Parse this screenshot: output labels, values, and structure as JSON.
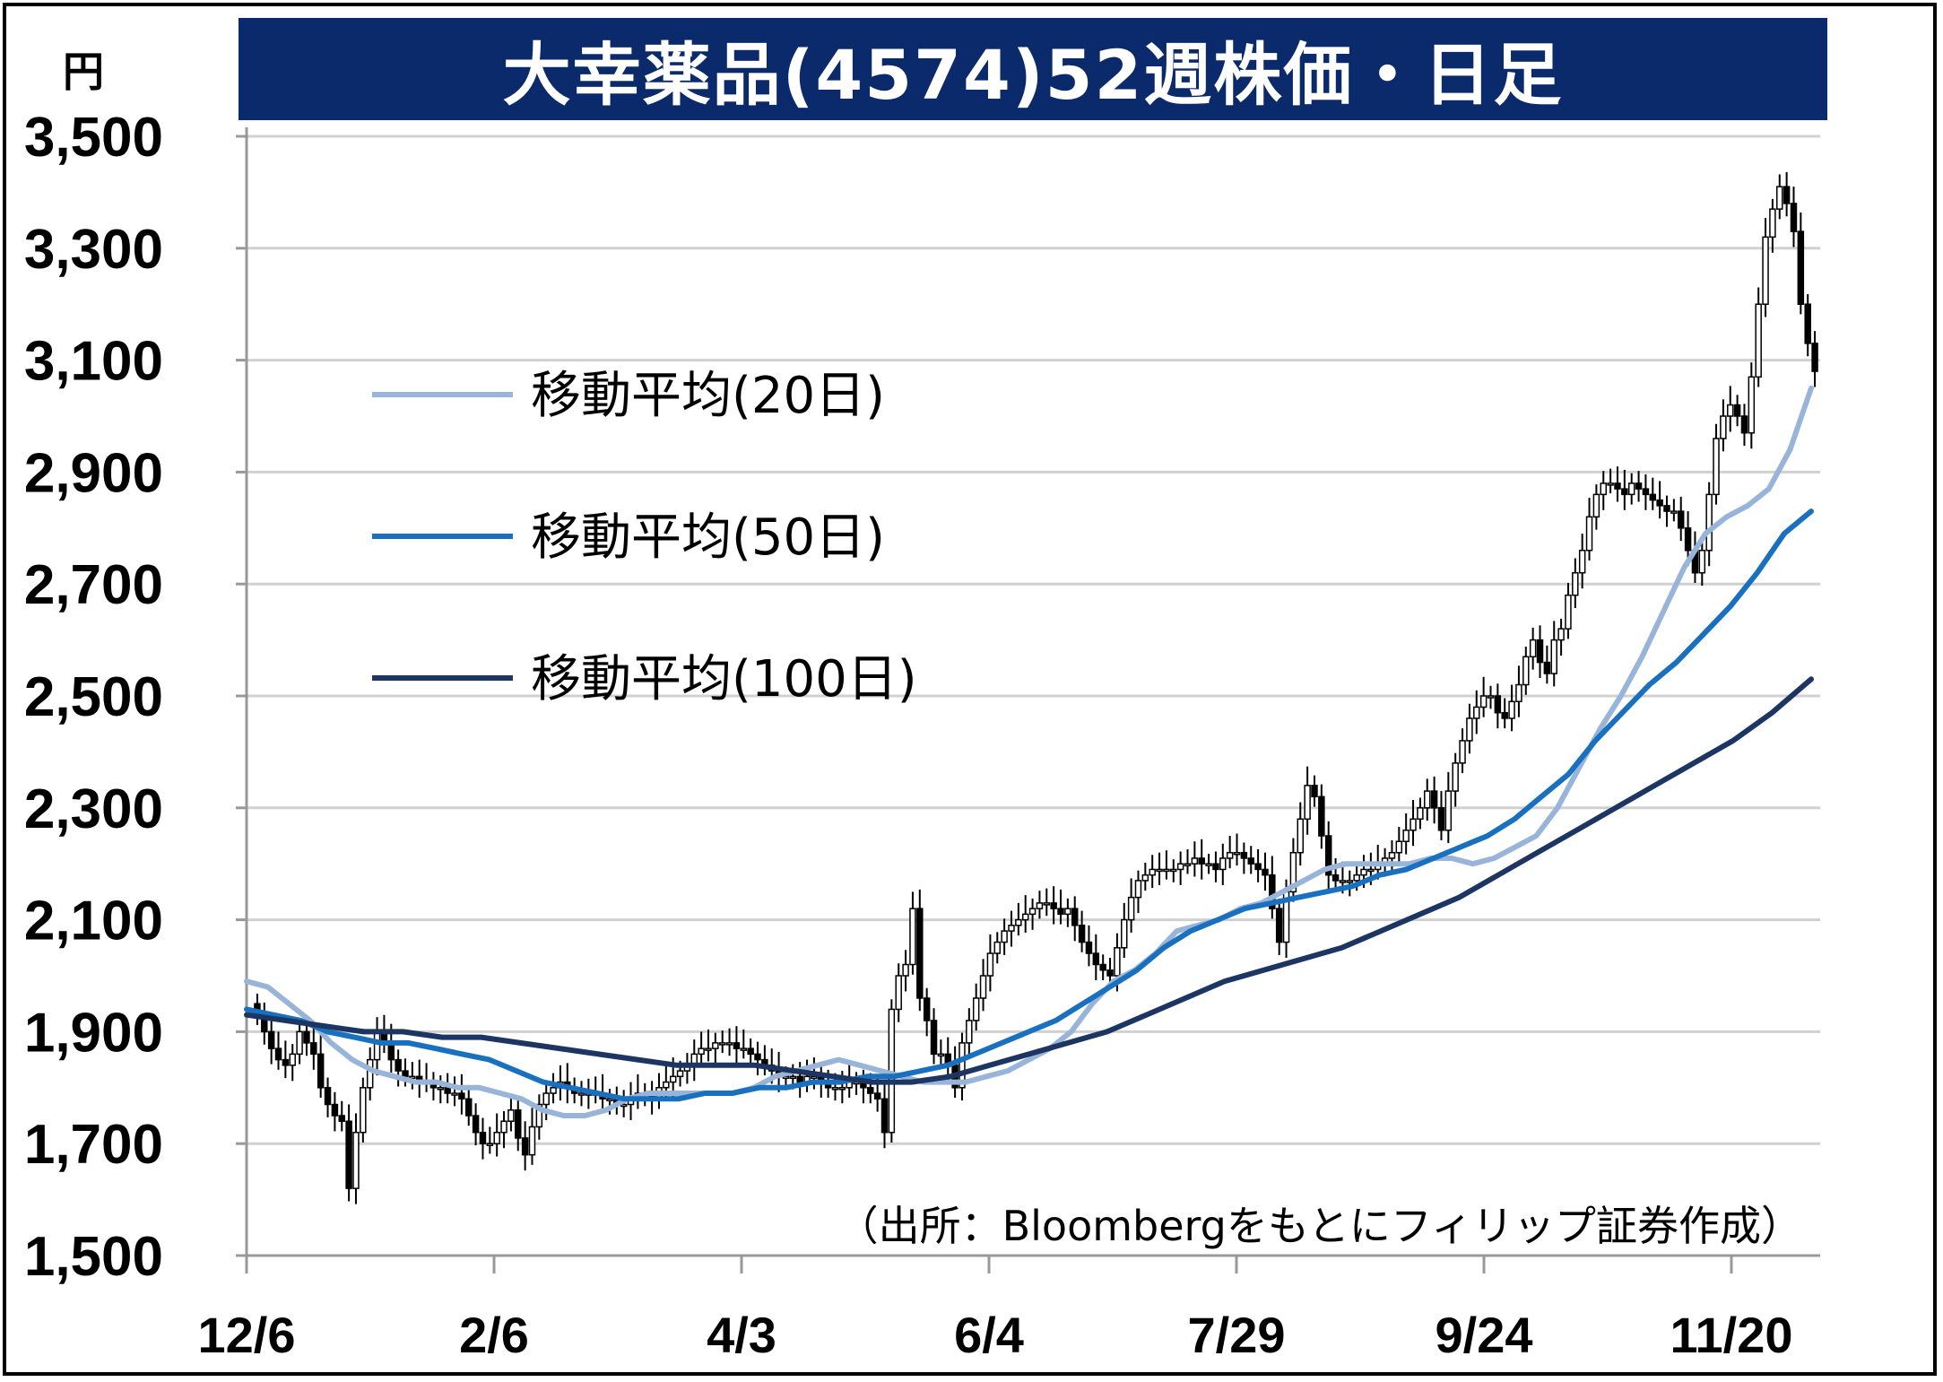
{
  "title": "大幸薬品(4574)52週株価・日足",
  "unit_label": "円",
  "source_note": "（出所：Bloombergをもとにフィリップ証券作成）",
  "legend": [
    {
      "label": "移動平均(20日)",
      "color": "#98b4d8"
    },
    {
      "label": "移動平均(50日)",
      "color": "#1870bf"
    },
    {
      "label": "移動平均(100日)",
      "color": "#1c3563"
    }
  ],
  "chart_data": {
    "type": "candlestick",
    "title": "大幸薬品(4574)52週株価・日足",
    "ylabel": "円",
    "ylim": [
      1500,
      3500
    ],
    "yticks": [
      1500,
      1700,
      1900,
      2100,
      2300,
      2500,
      2700,
      2900,
      3100,
      3300,
      3500
    ],
    "ytick_labels": [
      "1,500",
      "1,700",
      "1,900",
      "2,100",
      "2,300",
      "2,500",
      "2,700",
      "2,900",
      "3,100",
      "3,300",
      "3,500"
    ],
    "xticks": [
      "12/6",
      "2/6",
      "4/3",
      "6/4",
      "7/29",
      "9/24",
      "11/20"
    ],
    "grid": true,
    "legend_position": "upper-left",
    "price_close_approx": [
      1930,
      1900,
      1870,
      1850,
      1840,
      1860,
      1900,
      1880,
      1860,
      1800,
      1770,
      1750,
      1740,
      1620,
      1720,
      1800,
      1850,
      1900,
      1880,
      1850,
      1830,
      1820,
      1820,
      1810,
      1810,
      1800,
      1800,
      1790,
      1790,
      1780,
      1750,
      1720,
      1700,
      1700,
      1720,
      1740,
      1760,
      1710,
      1680,
      1730,
      1770,
      1790,
      1800,
      1810,
      1800,
      1790,
      1790,
      1790,
      1790,
      1780,
      1780,
      1770,
      1770,
      1780,
      1790,
      1790,
      1780,
      1800,
      1810,
      1820,
      1830,
      1840,
      1860,
      1870,
      1870,
      1880,
      1880,
      1880,
      1870,
      1870,
      1860,
      1850,
      1840,
      1830,
      1820,
      1820,
      1820,
      1810,
      1820,
      1820,
      1810,
      1800,
      1800,
      1800,
      1810,
      1810,
      1800,
      1790,
      1780,
      1720,
      1940,
      2000,
      2020,
      2120,
      1960,
      1920,
      1860,
      1860,
      1840,
      1800,
      1880,
      1920,
      1960,
      2000,
      2040,
      2060,
      2080,
      2090,
      2100,
      2110,
      2120,
      2130,
      2130,
      2120,
      2110,
      2120,
      2090,
      2060,
      2040,
      2020,
      2010,
      2000,
      2050,
      2100,
      2140,
      2170,
      2180,
      2190,
      2190,
      2190,
      2190,
      2200,
      2200,
      2210,
      2200,
      2200,
      2190,
      2210,
      2220,
      2220,
      2210,
      2200,
      2190,
      2180,
      2120,
      2060,
      2150,
      2220,
      2280,
      2340,
      2320,
      2250,
      2180,
      2170,
      2170,
      2170,
      2180,
      2190,
      2190,
      2200,
      2210,
      2220,
      2240,
      2260,
      2280,
      2300,
      2330,
      2300,
      2260,
      2330,
      2380,
      2420,
      2460,
      2480,
      2500,
      2500,
      2470,
      2460,
      2490,
      2520,
      2570,
      2600,
      2560,
      2540,
      2600,
      2620,
      2680,
      2720,
      2760,
      2820,
      2860,
      2880,
      2880,
      2870,
      2860,
      2880,
      2870,
      2860,
      2850,
      2840,
      2830,
      2830,
      2800,
      2760,
      2720,
      2760,
      2860,
      2960,
      3000,
      3020,
      3000,
      2970,
      3070,
      3200,
      3320,
      3370,
      3410,
      3380,
      3330,
      3200,
      3130,
      3080
    ],
    "series": [
      {
        "name": "移動平均(20日)",
        "values": [
          1990,
          1980,
          1950,
          1920,
          1880,
          1850,
          1830,
          1820,
          1810,
          1810,
          1800,
          1800,
          1790,
          1780,
          1760,
          1750,
          1750,
          1760,
          1780,
          1790,
          1790,
          1790,
          1790,
          1790,
          1800,
          1820,
          1830,
          1840,
          1850,
          1840,
          1830,
          1820,
          1810,
          1810,
          1810,
          1820,
          1830,
          1850,
          1870,
          1900,
          1950,
          1990,
          2010,
          2040,
          2080,
          2090,
          2100,
          2120,
          2130,
          2150,
          2170,
          2190,
          2200,
          2200,
          2200,
          2200,
          2210,
          2210,
          2200,
          2210,
          2230,
          2250,
          2300,
          2370,
          2440,
          2500,
          2570,
          2650,
          2730,
          2790,
          2820,
          2840,
          2870,
          2940,
          3050
        ]
      },
      {
        "name": "移動平均(50日)",
        "values": [
          1940,
          1930,
          1920,
          1900,
          1890,
          1880,
          1880,
          1870,
          1860,
          1850,
          1830,
          1810,
          1800,
          1790,
          1780,
          1780,
          1780,
          1790,
          1790,
          1800,
          1800,
          1810,
          1810,
          1820,
          1820,
          1830,
          1840,
          1860,
          1880,
          1900,
          1920,
          1950,
          1980,
          2010,
          2050,
          2080,
          2100,
          2120,
          2130,
          2140,
          2150,
          2160,
          2180,
          2190,
          2210,
          2230,
          2250,
          2280,
          2320,
          2360,
          2420,
          2470,
          2520,
          2560,
          2610,
          2660,
          2720,
          2790,
          2830
        ]
      },
      {
        "name": "移動平均(100日)",
        "values": [
          1930,
          1920,
          1910,
          1900,
          1900,
          1890,
          1890,
          1880,
          1870,
          1860,
          1850,
          1840,
          1840,
          1840,
          1830,
          1820,
          1810,
          1810,
          1820,
          1840,
          1860,
          1880,
          1900,
          1930,
          1960,
          1990,
          2010,
          2030,
          2050,
          2080,
          2110,
          2140,
          2180,
          2220,
          2260,
          2300,
          2340,
          2380,
          2420,
          2470,
          2530
        ]
      }
    ]
  }
}
